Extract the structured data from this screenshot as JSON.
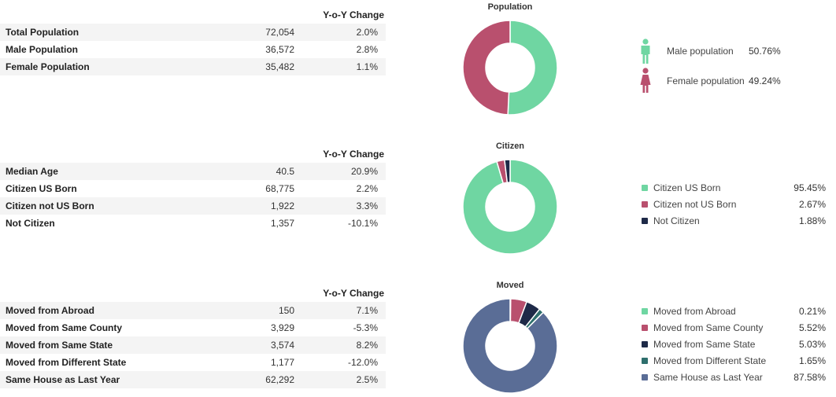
{
  "colors": {
    "green": "#6fd6a2",
    "red": "#b9506e",
    "navy": "#1e2a48",
    "teal": "#2e6f6d",
    "slate": "#5a6d96"
  },
  "tables": [
    {
      "header": "Y-o-Y Change",
      "rows": [
        {
          "label": "Total Population",
          "value": "72,054",
          "change": "2.0%"
        },
        {
          "label": "Male Population",
          "value": "36,572",
          "change": "2.8%"
        },
        {
          "label": "Female Population",
          "value": "35,482",
          "change": "1.1%"
        }
      ]
    },
    {
      "header": "Y-o-Y Change",
      "rows": [
        {
          "label": "Median Age",
          "value": "40.5",
          "change": "20.9%"
        },
        {
          "label": "Citizen US Born",
          "value": "68,775",
          "change": "2.2%"
        },
        {
          "label": "Citizen not US Born",
          "value": "1,922",
          "change": "3.3%"
        },
        {
          "label": "Not Citizen",
          "value": "1,357",
          "change": "-10.1%"
        }
      ]
    },
    {
      "header": "Y-o-Y Change",
      "rows": [
        {
          "label": "Moved from Abroad",
          "value": "150",
          "change": "7.1%"
        },
        {
          "label": "Moved from Same County",
          "value": "3,929",
          "change": "-5.3%"
        },
        {
          "label": "Moved from Same State",
          "value": "3,574",
          "change": "8.2%"
        },
        {
          "label": "Moved from Different State",
          "value": "1,177",
          "change": "-12.0%"
        },
        {
          "label": "Same House as Last Year",
          "value": "62,292",
          "change": "2.5%"
        }
      ]
    }
  ],
  "chart_data": [
    {
      "type": "pie",
      "title": "Population",
      "labels": [
        "Male population",
        "Female population"
      ],
      "values": [
        50.76,
        49.24
      ],
      "display": [
        "50.76%",
        "49.24%"
      ],
      "colors": [
        "#6fd6a2",
        "#b9506e"
      ],
      "icons": [
        "male-person-icon",
        "female-person-icon"
      ]
    },
    {
      "type": "pie",
      "title": "Citizen",
      "labels": [
        "Citizen US Born",
        "Citizen not US Born",
        "Not Citizen"
      ],
      "values": [
        95.45,
        2.67,
        1.88
      ],
      "display": [
        "95.45%",
        "2.67%",
        "1.88%"
      ],
      "colors": [
        "#6fd6a2",
        "#b9506e",
        "#1e2a48"
      ]
    },
    {
      "type": "pie",
      "title": "Moved",
      "labels": [
        "Moved from Abroad",
        "Moved from Same County",
        "Moved from Same State",
        "Moved from Different State",
        "Same House as Last Year"
      ],
      "values": [
        0.21,
        5.52,
        5.03,
        1.65,
        87.58
      ],
      "display": [
        "0.21%",
        "5.52%",
        "5.03%",
        "1.65%",
        "87.58%"
      ],
      "colors": [
        "#6fd6a2",
        "#b9506e",
        "#1e2a48",
        "#2e6f6d",
        "#5a6d96"
      ]
    }
  ]
}
